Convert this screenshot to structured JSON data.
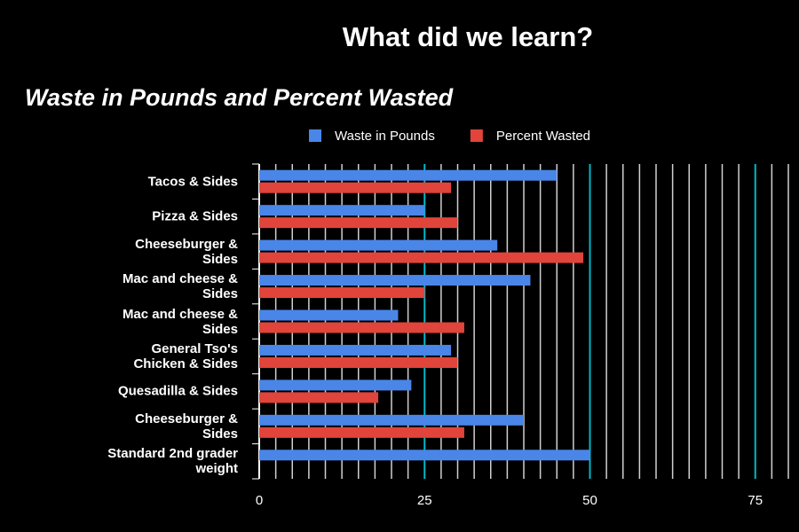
{
  "header": "What did we learn?",
  "chart_data": {
    "type": "bar",
    "orientation": "horizontal",
    "title": "Waste in Pounds and Percent Wasted",
    "categories": [
      "Tacos & Sides",
      "Pizza & Sides",
      "Cheeseburger &\nSides",
      "Mac and cheese &\nSides",
      "Mac and cheese &\nSides",
      "General Tso's\nChicken & Sides",
      "Quesadilla & Sides",
      "Cheeseburger &\nSides",
      "Standard 2nd grader\nweight"
    ],
    "series": [
      {
        "name": "Waste in Pounds",
        "color": "#4a86e8",
        "values": [
          45,
          25,
          36,
          41,
          21,
          29,
          23,
          40,
          50
        ]
      },
      {
        "name": "Percent Wasted",
        "color": "#e0443a",
        "values": [
          29,
          30,
          49,
          25,
          31,
          30,
          18,
          31,
          null
        ]
      }
    ],
    "xlim": [
      0,
      80
    ],
    "xticks": [
      0,
      25,
      50,
      75
    ],
    "minor_grid_step": 2.5,
    "grid": true,
    "legend": "top"
  }
}
